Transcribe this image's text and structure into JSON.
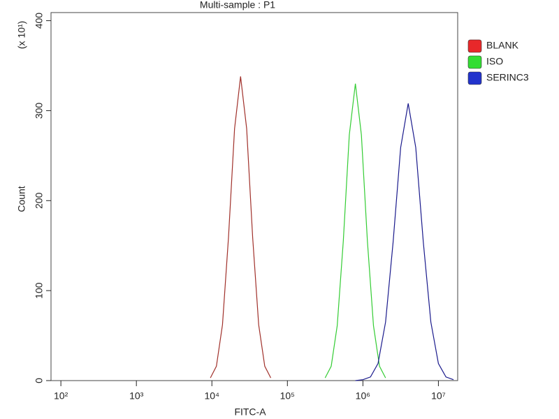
{
  "chart_data": {
    "type": "histogram-overlay",
    "title": "Multi-sample : P1",
    "x_label": "FITC-A",
    "y_label": "Count",
    "y_annotation": "(x 10¹)",
    "xscale": "log",
    "xlim": [
      74,
      18000000
    ],
    "xticks": [
      {
        "value": 100,
        "label": "10²"
      },
      {
        "value": 1000,
        "label": "10³"
      },
      {
        "value": 10000,
        "label": "10⁴"
      },
      {
        "value": 100000,
        "label": "10⁵"
      },
      {
        "value": 1000000,
        "label": "10⁶"
      },
      {
        "value": 10000000,
        "label": "10⁷"
      }
    ],
    "ylim": [
      0,
      409
    ],
    "yticks": [
      0,
      100,
      200,
      300,
      400
    ],
    "legend": "right",
    "series": [
      {
        "name": "BLANK",
        "color": "#a0302a",
        "legend_color": "#e8282a",
        "x": [
          9550,
          11480,
          13800,
          16600,
          19950,
          23990,
          28840,
          34670,
          41690,
          50120,
          60260
        ],
        "values": [
          3,
          16,
          62,
          159,
          280,
          338,
          280,
          159,
          62,
          16,
          3
        ]
      },
      {
        "name": "ISO",
        "color": "#33cc33",
        "legend_color": "#33dd33",
        "x": [
          316200,
          380200,
          457100,
          549500,
          660700,
          794300,
          955000,
          1148000,
          1380000,
          1660000,
          1995000
        ],
        "values": [
          3,
          16,
          61,
          155,
          273,
          330,
          273,
          155,
          61,
          16,
          3
        ]
      },
      {
        "name": "SERINC3",
        "color": "#1a1a8c",
        "legend_color": "#2233cc",
        "x": [
          794300,
          1000000,
          1259000,
          1585000,
          1995000,
          2512000,
          3162000,
          3981000,
          5012000,
          6310000,
          7943000,
          10000000,
          12590000,
          15850000
        ],
        "values": [
          0,
          1,
          4,
          19,
          65,
          154,
          259,
          308,
          259,
          154,
          65,
          19,
          4,
          1
        ]
      }
    ]
  }
}
